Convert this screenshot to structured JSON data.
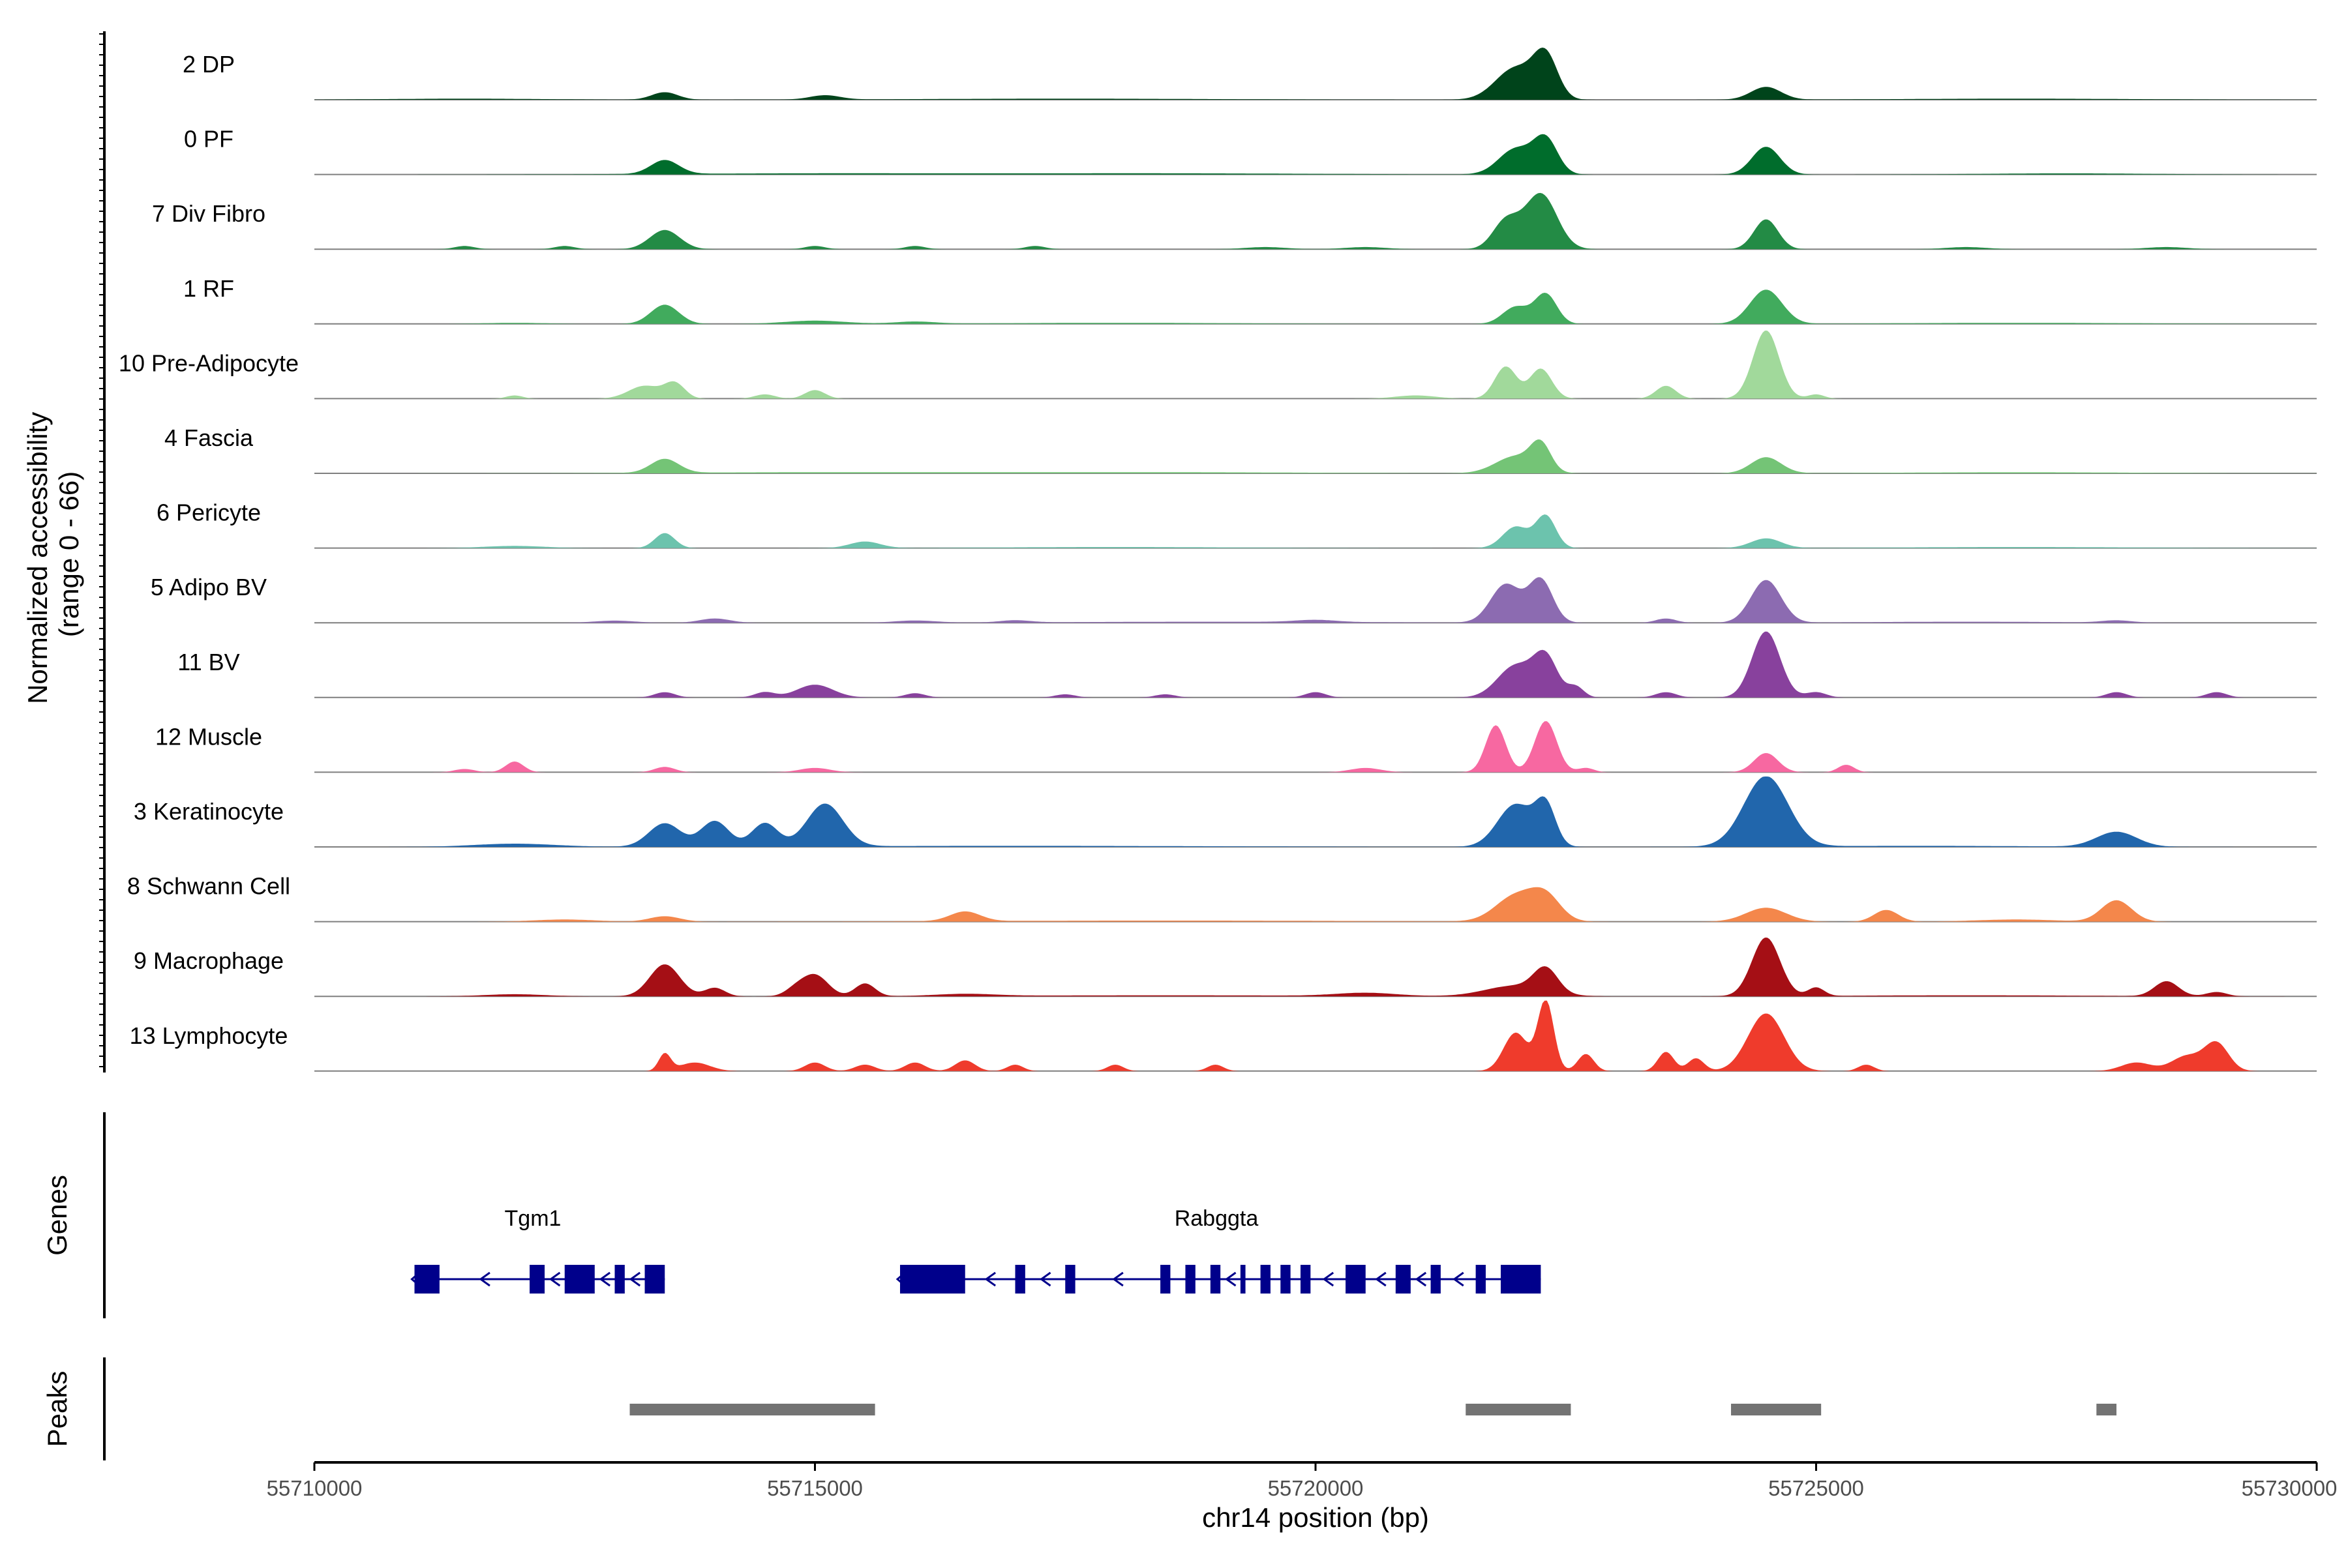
{
  "chart_data": {
    "type": "area",
    "region": {
      "chromosome": "chr14",
      "start": 55710000,
      "end": 55730000
    },
    "xlabel": "chr14 position (bp)",
    "xticks": [
      "55710000",
      "55715000",
      "55720000",
      "55725000",
      "55730000"
    ],
    "ylabel": "Normalized accessibility",
    "ylabel_range": "(range 0 - 66)",
    "ylim": [
      0,
      66
    ],
    "y_scale_note": "Normalized accessibility (range 0 - 66)",
    "tracks": [
      {
        "name": "2 DP",
        "color": "#00441b",
        "peaks": [
          [
            55713500,
            7,
            130
          ],
          [
            55715100,
            4,
            150
          ],
          [
            55722000,
            30,
            200
          ],
          [
            55722300,
            38,
            120
          ],
          [
            55724500,
            12,
            150
          ],
          [
            55711500,
            1,
            800
          ],
          [
            55717500,
            1,
            1500
          ],
          [
            55727000,
            1,
            1200
          ]
        ]
      },
      {
        "name": "0 PF",
        "color": "#006d2c",
        "peaks": [
          [
            55713500,
            13,
            140
          ],
          [
            55722000,
            24,
            170
          ],
          [
            55722300,
            32,
            120
          ],
          [
            55724500,
            26,
            140
          ],
          [
            55715000,
            1,
            1500
          ],
          [
            55718500,
            1,
            1500
          ],
          [
            55727500,
            1,
            800
          ]
        ]
      },
      {
        "name": "7 Div Fibro",
        "color": "#238b45",
        "peaks": [
          [
            55713500,
            18,
            150
          ],
          [
            55721900,
            26,
            130
          ],
          [
            55722250,
            52,
            160
          ],
          [
            55724500,
            28,
            120
          ],
          [
            55711500,
            3,
            100
          ],
          [
            55712500,
            3,
            100
          ],
          [
            55715000,
            3,
            100
          ],
          [
            55716000,
            3,
            100
          ],
          [
            55717200,
            3,
            100
          ],
          [
            55719500,
            2,
            200
          ],
          [
            55720500,
            2,
            200
          ],
          [
            55726500,
            2,
            200
          ],
          [
            55728500,
            2,
            200
          ]
        ]
      },
      {
        "name": "1 RF",
        "color": "#41ab5d",
        "peaks": [
          [
            55713500,
            18,
            140
          ],
          [
            55722000,
            16,
            130
          ],
          [
            55722300,
            28,
            110
          ],
          [
            55724500,
            32,
            160
          ],
          [
            55715000,
            3,
            300
          ],
          [
            55716000,
            2,
            200
          ],
          [
            55712000,
            1,
            300
          ],
          [
            55718000,
            1,
            1200
          ],
          [
            55727000,
            1,
            1200
          ]
        ]
      },
      {
        "name": "10 Pre-Adipocyte",
        "color": "#a1d99b",
        "peaks": [
          [
            55713300,
            12,
            160
          ],
          [
            55713600,
            14,
            100
          ],
          [
            55715000,
            8,
            100
          ],
          [
            55714500,
            4,
            100
          ],
          [
            55721900,
            30,
            110
          ],
          [
            55722250,
            28,
            110
          ],
          [
            55723500,
            12,
            100
          ],
          [
            55724500,
            64,
            130
          ],
          [
            55712000,
            3,
            80
          ],
          [
            55725000,
            4,
            80
          ],
          [
            55721000,
            3,
            200
          ]
        ]
      },
      {
        "name": "4 Fascia",
        "color": "#74c476",
        "peaks": [
          [
            55713500,
            13,
            140
          ],
          [
            55722000,
            16,
            200
          ],
          [
            55722250,
            24,
            100
          ],
          [
            55724500,
            15,
            150
          ],
          [
            55715000,
            1,
            1500
          ],
          [
            55718500,
            1,
            1500
          ],
          [
            55727000,
            1,
            1200
          ]
        ]
      },
      {
        "name": "6 Pericyte",
        "color": "#6cc3ad",
        "peaks": [
          [
            55713500,
            14,
            100
          ],
          [
            55722000,
            20,
            130
          ],
          [
            55722300,
            30,
            100
          ],
          [
            55724500,
            9,
            150
          ],
          [
            55715500,
            6,
            150
          ],
          [
            55712000,
            2,
            300
          ],
          [
            55718000,
            1,
            1200
          ],
          [
            55727000,
            1,
            1200
          ]
        ]
      },
      {
        "name": "5 Adipo BV",
        "color": "#8c6bb1",
        "peaks": [
          [
            55721900,
            36,
            150
          ],
          [
            55722250,
            40,
            120
          ],
          [
            55724500,
            40,
            150
          ],
          [
            55714000,
            4,
            150
          ],
          [
            55713000,
            2,
            200
          ],
          [
            55716000,
            2,
            200
          ],
          [
            55717000,
            2,
            150
          ],
          [
            55720000,
            2,
            200
          ],
          [
            55723500,
            4,
            100
          ],
          [
            55728000,
            2,
            150
          ],
          [
            55719000,
            1,
            1500
          ],
          [
            55726500,
            1,
            1000
          ]
        ]
      },
      {
        "name": "11 BV",
        "color": "#88419d",
        "peaks": [
          [
            55722000,
            30,
            180
          ],
          [
            55722300,
            36,
            120
          ],
          [
            55724500,
            62,
            140
          ],
          [
            55715000,
            12,
            180
          ],
          [
            55713500,
            5,
            100
          ],
          [
            55714500,
            5,
            100
          ],
          [
            55716000,
            4,
            100
          ],
          [
            55720000,
            5,
            100
          ],
          [
            55722600,
            10,
            80
          ],
          [
            55723500,
            5,
            100
          ],
          [
            55728000,
            5,
            100
          ],
          [
            55729000,
            5,
            100
          ],
          [
            55725000,
            5,
            100
          ],
          [
            55717500,
            3,
            100
          ],
          [
            55718500,
            3,
            100
          ]
        ]
      },
      {
        "name": "12 Muscle",
        "color": "#f768a1",
        "peaks": [
          [
            55721800,
            44,
            100
          ],
          [
            55722300,
            48,
            110
          ],
          [
            55724500,
            18,
            120
          ],
          [
            55712000,
            10,
            90
          ],
          [
            55713500,
            5,
            100
          ],
          [
            55715000,
            4,
            150
          ],
          [
            55720500,
            4,
            150
          ],
          [
            55725300,
            7,
            80
          ],
          [
            55711500,
            3,
            100
          ],
          [
            55722700,
            4,
            80
          ]
        ]
      },
      {
        "name": "3 Keratinocyte",
        "color": "#2166ac",
        "peaks": [
          [
            55713500,
            22,
            160
          ],
          [
            55714000,
            24,
            140
          ],
          [
            55714500,
            22,
            130
          ],
          [
            55715100,
            40,
            180
          ],
          [
            55722000,
            40,
            180
          ],
          [
            55722300,
            36,
            100
          ],
          [
            55724500,
            66,
            220
          ],
          [
            55728000,
            14,
            200
          ],
          [
            55712000,
            3,
            400
          ],
          [
            55717000,
            1,
            2000
          ],
          [
            55726000,
            1,
            1200
          ]
        ]
      },
      {
        "name": "8 Schwann Cell",
        "color": "#f4874b",
        "peaks": [
          [
            55722000,
            24,
            200
          ],
          [
            55722300,
            22,
            150
          ],
          [
            55724500,
            13,
            200
          ],
          [
            55716500,
            9,
            150
          ],
          [
            55725700,
            11,
            120
          ],
          [
            55728000,
            20,
            150
          ],
          [
            55713500,
            5,
            150
          ],
          [
            55712500,
            2,
            300
          ],
          [
            55718500,
            1,
            2000
          ],
          [
            55727000,
            2,
            400
          ]
        ]
      },
      {
        "name": "9 Macrophage",
        "color": "#a50f15",
        "peaks": [
          [
            55713500,
            30,
            150
          ],
          [
            55715000,
            20,
            130
          ],
          [
            55715500,
            12,
            100
          ],
          [
            55714000,
            8,
            100
          ],
          [
            55714800,
            6,
            100
          ],
          [
            55722000,
            10,
            300
          ],
          [
            55722300,
            22,
            120
          ],
          [
            55724500,
            55,
            140
          ],
          [
            55725000,
            8,
            80
          ],
          [
            55728500,
            14,
            120
          ],
          [
            55729000,
            4,
            100
          ],
          [
            55720500,
            3,
            300
          ],
          [
            55712000,
            2,
            300
          ],
          [
            55716500,
            2,
            300
          ],
          [
            55718500,
            1,
            1500
          ],
          [
            55726500,
            1,
            1200
          ]
        ]
      },
      {
        "name": "13 Lymphocyte",
        "color": "#ef3b2c",
        "peaks": [
          [
            55722000,
            36,
            120
          ],
          [
            55722300,
            66,
            80
          ],
          [
            55724500,
            54,
            180
          ],
          [
            55713500,
            16,
            60
          ],
          [
            55713800,
            8,
            150
          ],
          [
            55715000,
            8,
            100
          ],
          [
            55715500,
            6,
            100
          ],
          [
            55716000,
            8,
            100
          ],
          [
            55716500,
            10,
            100
          ],
          [
            55717000,
            6,
            80
          ],
          [
            55718000,
            6,
            80
          ],
          [
            55719000,
            6,
            80
          ],
          [
            55722700,
            16,
            80
          ],
          [
            55723500,
            18,
            80
          ],
          [
            55723800,
            12,
            80
          ],
          [
            55729000,
            26,
            120
          ],
          [
            55728700,
            14,
            150
          ],
          [
            55728200,
            8,
            150
          ],
          [
            55725500,
            6,
            80
          ]
        ]
      }
    ],
    "genes_label": "Genes",
    "genes": [
      {
        "name": "Tgm1",
        "start": 55711000,
        "end": 55713500,
        "strand": "-",
        "exons": [
          [
            55711000,
            55711250
          ],
          [
            55712150,
            55712300
          ],
          [
            55712500,
            55712800
          ],
          [
            55713000,
            55713100
          ],
          [
            55713300,
            55713500
          ]
        ]
      },
      {
        "name": "Rabggta",
        "start": 55715850,
        "end": 55722250,
        "strand": "-",
        "exons": [
          [
            55715850,
            55716500
          ],
          [
            55717000,
            55717100
          ],
          [
            55717500,
            55717600
          ],
          [
            55718450,
            55718550
          ],
          [
            55718700,
            55718800
          ],
          [
            55718950,
            55719050
          ],
          [
            55719250,
            55719300
          ],
          [
            55719450,
            55719550
          ],
          [
            55719650,
            55719750
          ],
          [
            55719850,
            55719950
          ],
          [
            55720300,
            55720500
          ],
          [
            55720800,
            55720950
          ],
          [
            55721150,
            55721250
          ],
          [
            55721600,
            55721700
          ],
          [
            55721850,
            55722250
          ]
        ]
      }
    ],
    "peaks_label": "Peaks",
    "peak_regions": [
      [
        55713150,
        55715600
      ],
      [
        55721500,
        55722550
      ],
      [
        55724150,
        55725050
      ],
      [
        55727800,
        55728000
      ]
    ]
  },
  "colors": {
    "gene": "#00008b",
    "peak_region": "#737373",
    "baseline": "#7f7f7f",
    "axis": "#000000"
  }
}
